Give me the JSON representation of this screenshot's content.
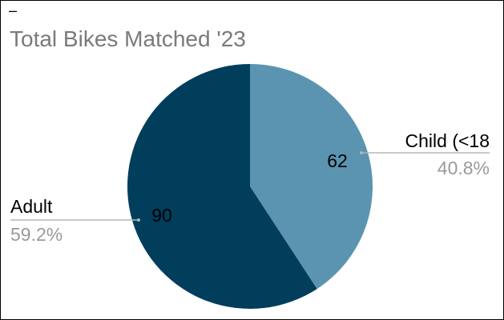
{
  "corner_mark": "–",
  "chart_data": {
    "type": "pie",
    "title": "Total Bikes Matched '23",
    "slices": [
      {
        "label": "Child (<18",
        "value": 62,
        "value_label": "62",
        "percent_label": "40.8%",
        "color": "#5b94b0"
      },
      {
        "label": "Adult",
        "value": 90,
        "value_label": "90",
        "percent_label": "59.2%",
        "color": "#003e5c"
      }
    ],
    "start_angle_deg": 0,
    "direction": "clockwise",
    "legend": "none"
  },
  "colors": {
    "title": "#7a7a7a",
    "label": "#000000",
    "percent": "#9a9a9a",
    "leader": "#b5b5b5"
  }
}
